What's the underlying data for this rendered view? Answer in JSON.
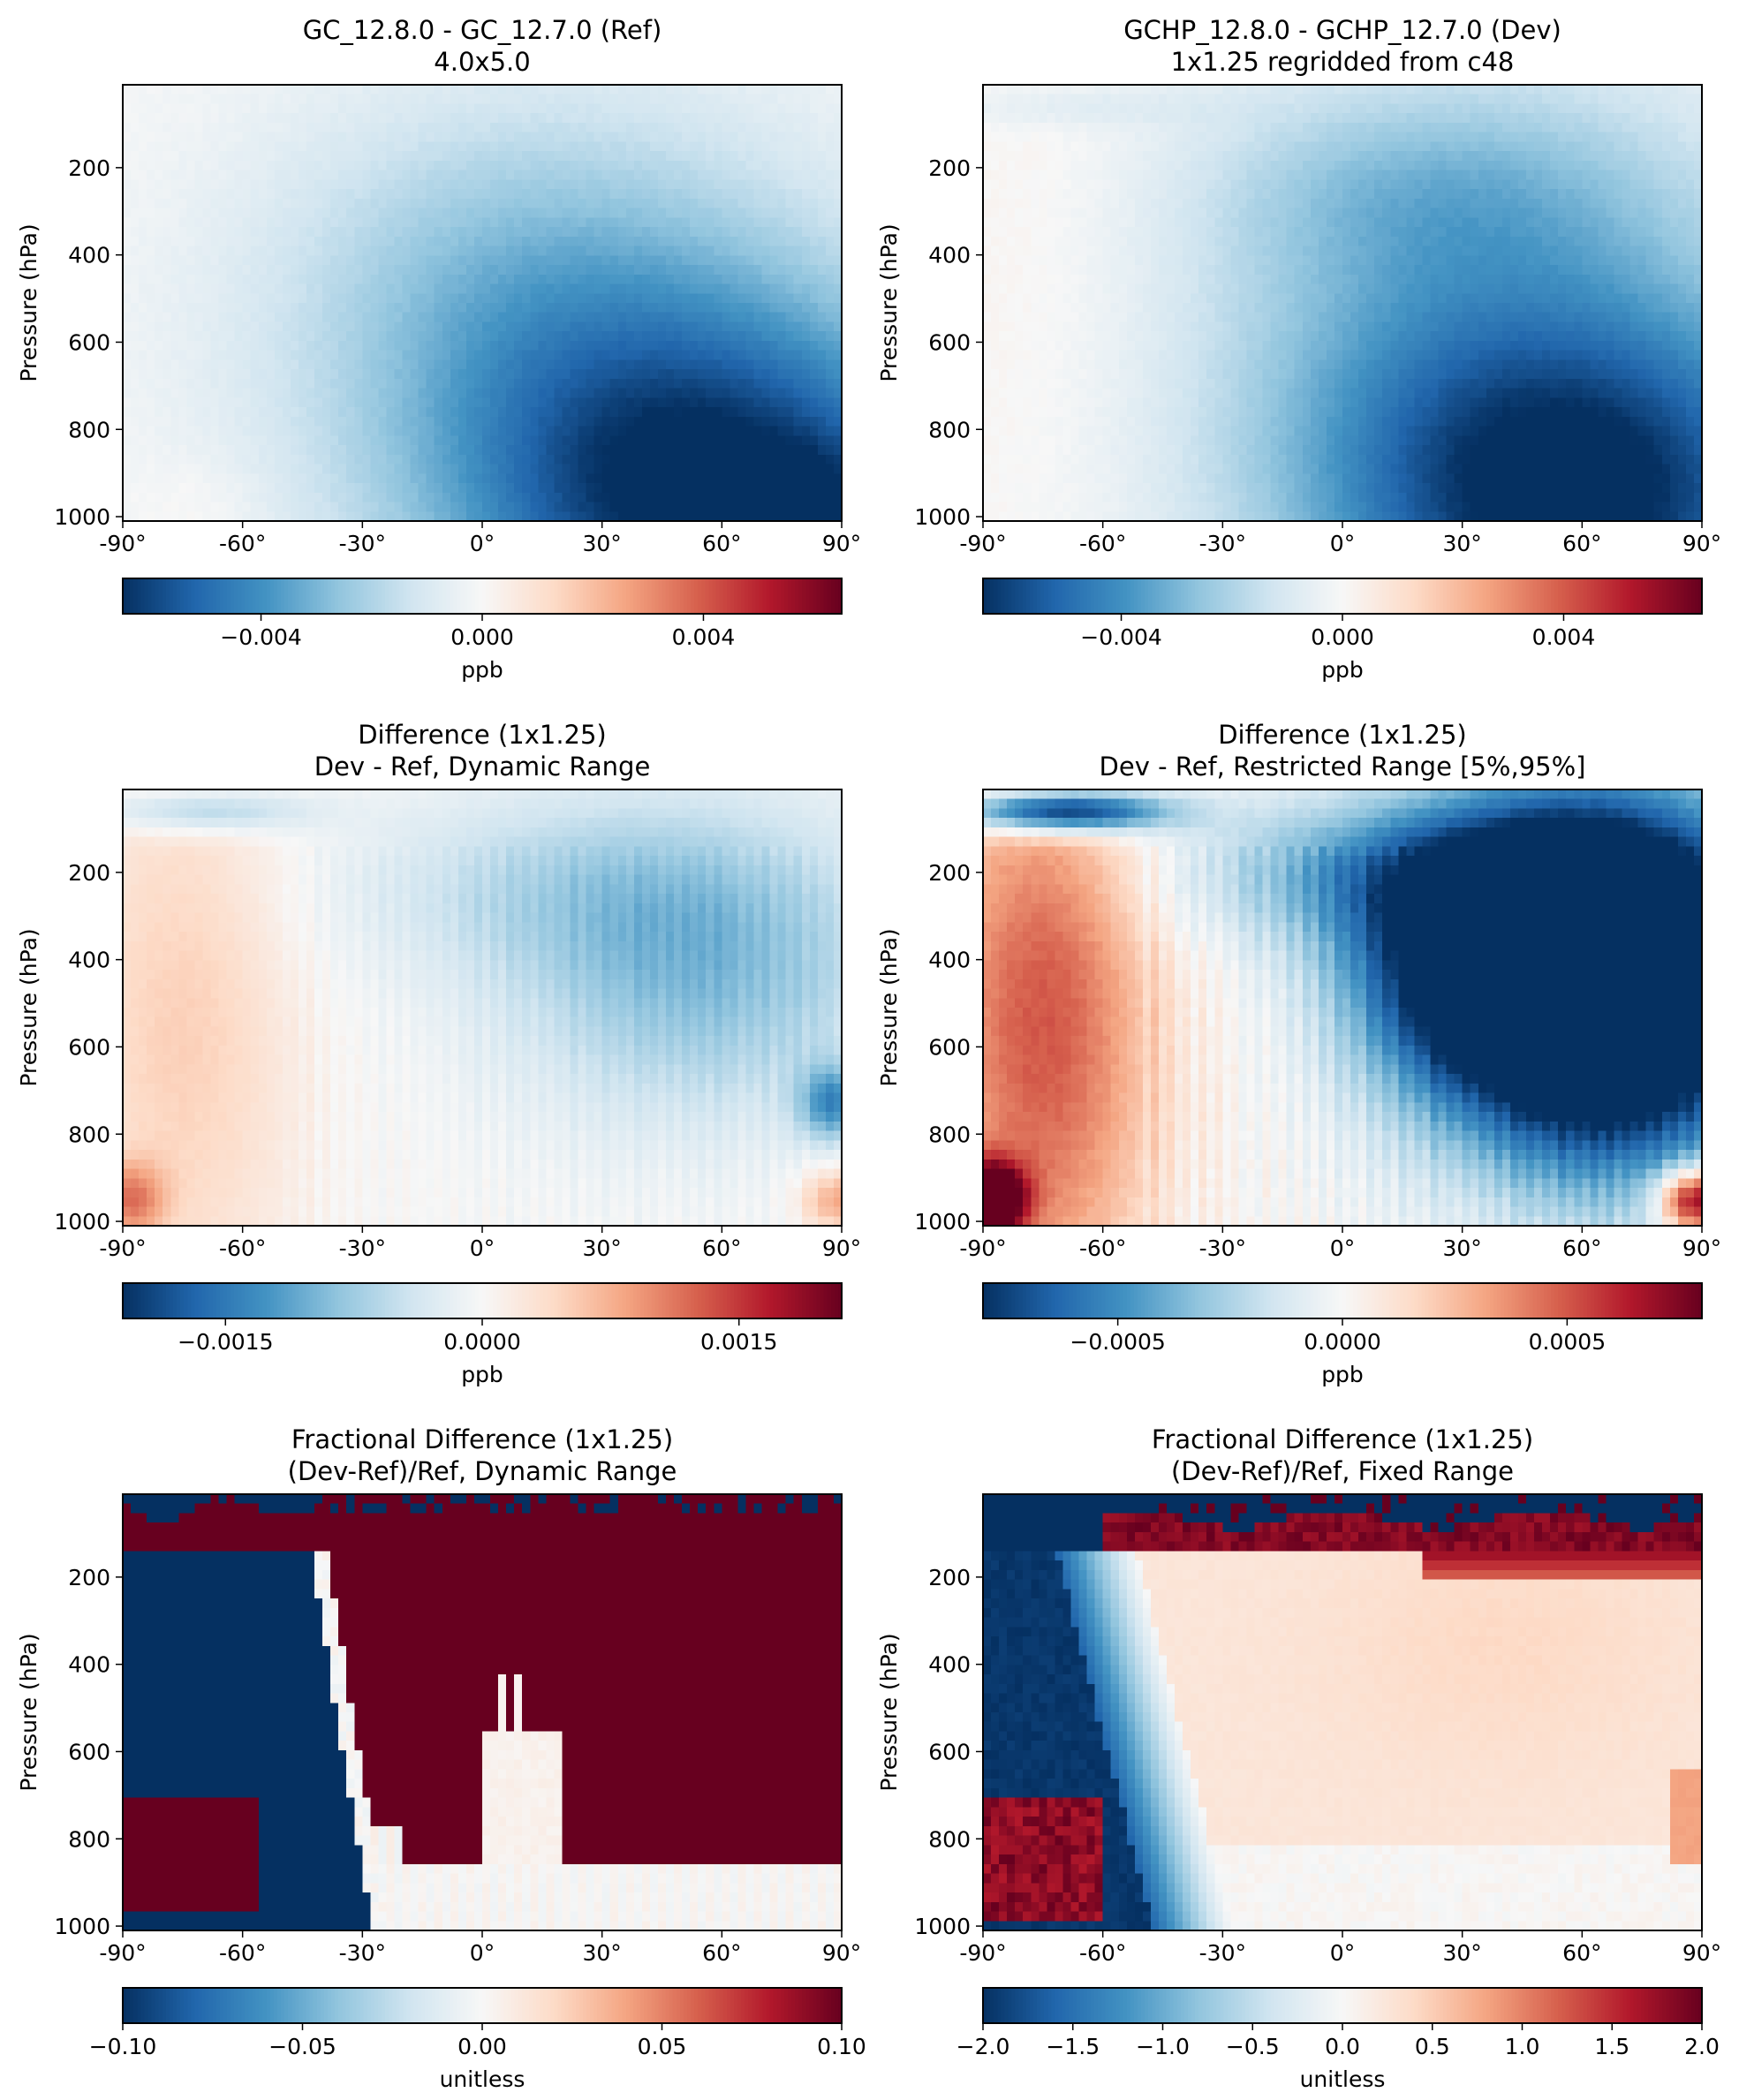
{
  "figure": {
    "background": "#ffffff"
  },
  "chart_data": [
    {
      "type": "heatmap",
      "title": "GC_12.8.0 - GC_12.7.0 (Ref)",
      "subtitle": "4.0x5.0",
      "xlabel": "",
      "ylabel": "Pressure (hPa)",
      "xlim": [
        -90,
        90
      ],
      "ylim": [
        1010,
        10
      ],
      "xticks": [
        "-90°",
        "-60°",
        "-30°",
        "0°",
        "30°",
        "60°",
        "90°"
      ],
      "yticks": [
        "200",
        "400",
        "600",
        "800",
        "1000"
      ],
      "colorbar": {
        "cmap": "RdBu_r",
        "vmin": -0.0065,
        "vmax": 0.0065,
        "ticks": [
          "−0.004",
          "0.000",
          "0.004"
        ],
        "label": "ppb"
      },
      "pattern": {
        "kind": "blobs",
        "base": 0.0,
        "noise": 0.0002,
        "blobs": [
          {
            "lat": 60,
            "p": 980,
            "sl": 45,
            "sp": 300,
            "a": -0.0055
          },
          {
            "lat": 30,
            "p": 700,
            "sl": 55,
            "sp": 420,
            "a": -0.0022
          },
          {
            "lat": 5,
            "p": 420,
            "sl": 45,
            "sp": 300,
            "a": -0.0012
          },
          {
            "lat": 85,
            "p": 1000,
            "sl": 15,
            "sp": 120,
            "a": -0.0015
          },
          {
            "lat": -70,
            "p": 980,
            "sl": 12,
            "sp": 90,
            "a": 0.0004
          }
        ]
      }
    },
    {
      "type": "heatmap",
      "title": "GCHP_12.8.0 - GCHP_12.7.0 (Dev)",
      "subtitle": "1x1.25 regridded from c48",
      "xlabel": "",
      "ylabel": "Pressure (hPa)",
      "xlim": [
        -90,
        90
      ],
      "ylim": [
        1010,
        10
      ],
      "xticks": [
        "-90°",
        "-60°",
        "-30°",
        "0°",
        "30°",
        "60°",
        "90°"
      ],
      "yticks": [
        "200",
        "400",
        "600",
        "800",
        "1000"
      ],
      "colorbar": {
        "cmap": "RdBu_r",
        "vmin": -0.0065,
        "vmax": 0.0065,
        "ticks": [
          "−0.004",
          "0.000",
          "0.004"
        ],
        "label": "ppb"
      },
      "pattern": {
        "kind": "blobs",
        "base": 0.0,
        "noise": 0.0002,
        "blobs": [
          {
            "lat": 60,
            "p": 980,
            "sl": 45,
            "sp": 300,
            "a": -0.0055
          },
          {
            "lat": 35,
            "p": 600,
            "sl": 55,
            "sp": 450,
            "a": -0.0028
          },
          {
            "lat": 20,
            "p": 250,
            "sl": 40,
            "sp": 150,
            "a": -0.0012
          },
          {
            "lat": -75,
            "p": 500,
            "sl": 25,
            "sp": 500,
            "a": 0.0004
          },
          {
            "lat": -70,
            "p": 60,
            "sl": 25,
            "sp": 35,
            "a": -0.0007
          }
        ]
      }
    },
    {
      "type": "heatmap",
      "title": "Difference (1x1.25)",
      "subtitle": "Dev - Ref, Dynamic Range",
      "xlabel": "",
      "ylabel": "Pressure (hPa)",
      "xlim": [
        -90,
        90
      ],
      "ylim": [
        1010,
        10
      ],
      "xticks": [
        "-90°",
        "-60°",
        "-30°",
        "0°",
        "30°",
        "60°",
        "90°"
      ],
      "yticks": [
        "200",
        "400",
        "600",
        "800",
        "1000"
      ],
      "colorbar": {
        "cmap": "RdBu_r",
        "vmin": -0.0021,
        "vmax": 0.0021,
        "ticks": [
          "−0.0015",
          "0.0000",
          "0.0015"
        ],
        "label": "ppb"
      },
      "pattern": {
        "kind": "blobs",
        "base": 0.0,
        "noise": 5e-05,
        "stripes": 0.00012,
        "blobs": [
          {
            "lat": -75,
            "p": 550,
            "sl": 20,
            "sp": 500,
            "a": 0.0005
          },
          {
            "lat": -70,
            "p": 60,
            "sl": 18,
            "sp": 35,
            "a": -0.0008
          },
          {
            "lat": 55,
            "p": 420,
            "sl": 35,
            "sp": 250,
            "a": -0.0009
          },
          {
            "lat": 15,
            "p": 230,
            "sl": 40,
            "sp": 150,
            "a": -0.0004
          },
          {
            "lat": 88,
            "p": 730,
            "sl": 6,
            "sp": 60,
            "a": -0.0012
          },
          {
            "lat": -88,
            "p": 950,
            "sl": 6,
            "sp": 60,
            "a": 0.0009
          },
          {
            "lat": 88,
            "p": 950,
            "sl": 6,
            "sp": 50,
            "a": 0.0008
          }
        ]
      }
    },
    {
      "type": "heatmap",
      "title": "Difference (1x1.25)",
      "subtitle": "Dev - Ref, Restricted Range [5%,95%]",
      "xlabel": "",
      "ylabel": "Pressure (hPa)",
      "xlim": [
        -90,
        90
      ],
      "ylim": [
        1010,
        10
      ],
      "xticks": [
        "-90°",
        "-60°",
        "-30°",
        "0°",
        "30°",
        "60°",
        "90°"
      ],
      "yticks": [
        "200",
        "400",
        "600",
        "800",
        "1000"
      ],
      "colorbar": {
        "cmap": "RdBu_r",
        "vmin": -0.0008,
        "vmax": 0.0008,
        "ticks": [
          "−0.0005",
          "0.0000",
          "0.0005"
        ],
        "label": "ppb"
      },
      "pattern": {
        "kind": "blobs",
        "base": 0.0,
        "noise": 4e-05,
        "stripes": 8e-05,
        "blobs": [
          {
            "lat": -75,
            "p": 550,
            "sl": 20,
            "sp": 500,
            "a": 0.0005
          },
          {
            "lat": -70,
            "p": 60,
            "sl": 18,
            "sp": 35,
            "a": -0.001
          },
          {
            "lat": 65,
            "p": 450,
            "sl": 30,
            "sp": 280,
            "a": -0.0016
          },
          {
            "lat": 30,
            "p": 420,
            "sl": 22,
            "sp": 180,
            "a": -0.0005
          },
          {
            "lat": 15,
            "p": 200,
            "sl": 40,
            "sp": 120,
            "a": -0.0004
          },
          {
            "lat": -88,
            "p": 950,
            "sl": 6,
            "sp": 60,
            "a": 0.001
          },
          {
            "lat": 88,
            "p": 950,
            "sl": 6,
            "sp": 50,
            "a": 0.0009
          }
        ]
      }
    },
    {
      "type": "heatmap",
      "title": "Fractional Difference (1x1.25)",
      "subtitle": "(Dev-Ref)/Ref, Dynamic Range",
      "xlabel": "",
      "ylabel": "Pressure (hPa)",
      "xlim": [
        -90,
        90
      ],
      "ylim": [
        1010,
        10
      ],
      "xticks": [
        "-90°",
        "-60°",
        "-30°",
        "0°",
        "30°",
        "60°",
        "90°"
      ],
      "yticks": [
        "200",
        "400",
        "600",
        "800",
        "1000"
      ],
      "colorbar": {
        "cmap": "RdBu_r",
        "vmin": -0.1,
        "vmax": 0.1,
        "ticks": [
          "−0.10",
          "−0.05",
          "0.00",
          "0.05",
          "0.10"
        ],
        "label": "unitless"
      },
      "pattern": {
        "kind": "frac",
        "mode": "dynamic"
      }
    },
    {
      "type": "heatmap",
      "title": "Fractional Difference (1x1.25)",
      "subtitle": "(Dev-Ref)/Ref, Fixed Range",
      "xlabel": "",
      "ylabel": "Pressure (hPa)",
      "xlim": [
        -90,
        90
      ],
      "ylim": [
        1010,
        10
      ],
      "xticks": [
        "-90°",
        "-60°",
        "-30°",
        "0°",
        "30°",
        "60°",
        "90°"
      ],
      "yticks": [
        "200",
        "400",
        "600",
        "800",
        "1000"
      ],
      "colorbar": {
        "cmap": "RdBu_r",
        "vmin": -2.0,
        "vmax": 2.0,
        "ticks": [
          "−2.0",
          "−1.5",
          "−1.0",
          "−0.5",
          "0.0",
          "0.5",
          "1.0",
          "1.5",
          "2.0"
        ],
        "label": "unitless"
      },
      "pattern": {
        "kind": "frac",
        "mode": "fixed"
      }
    }
  ]
}
